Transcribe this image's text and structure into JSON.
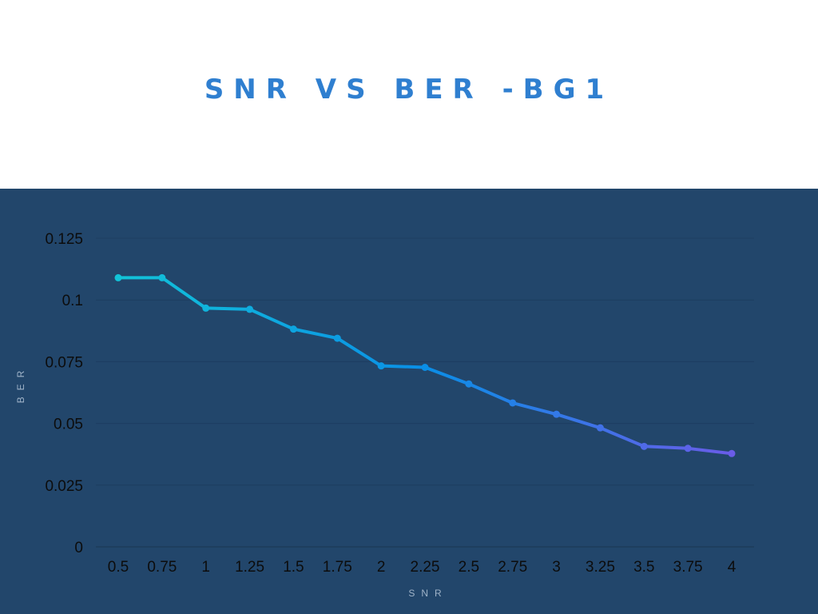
{
  "chart_data": {
    "type": "line",
    "title": "SNR VS BER -BG1",
    "xlabel": "SNR",
    "ylabel": "BER",
    "categories": [
      "0.5",
      "0.75",
      "1",
      "1.25",
      "1.5",
      "1.75",
      "2",
      "2.25",
      "2.5",
      "2.75",
      "3",
      "3.25",
      "3.5",
      "3.75",
      "4"
    ],
    "series": [
      {
        "values": [
          0.109,
          0.109,
          0.0967,
          0.0962,
          0.0882,
          0.0845,
          0.0733,
          0.0727,
          0.066,
          0.0583,
          0.0537,
          0.0482,
          0.0407,
          0.0399,
          0.0378
        ]
      }
    ],
    "yticks": [
      "0",
      "0.025",
      "0.05",
      "0.075",
      "0.1",
      "0.125"
    ],
    "ylim": [
      0,
      0.125
    ],
    "grid": true,
    "gradient_colors": [
      "#12c3d8",
      "#0a8ee6",
      "#6a5ce8"
    ],
    "colors": {
      "background": "#22466b",
      "title": "#2f7fd0",
      "gridline": "#1d3d60",
      "tick_text": "#0c0c0c",
      "axis_label": "#9fb3c8"
    }
  }
}
